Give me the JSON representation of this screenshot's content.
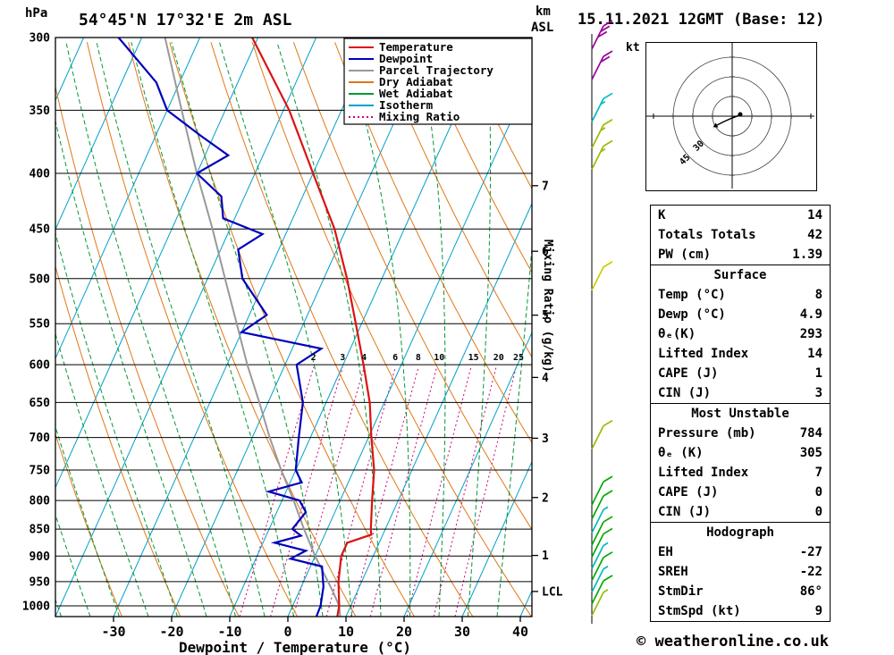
{
  "header": {
    "pressure_unit": "hPa",
    "title": "54°45'N 17°32'E 2m ASL",
    "km_label": "km",
    "asl_label": "ASL",
    "date_title": "15.11.2021 12GMT (Base: 12)"
  },
  "axes": {
    "xlabel": "Dewpoint / Temperature (°C)",
    "mixing_ratio_axis_label": "Mixing Ratio (g/kg)",
    "pressure_ticks": [
      300,
      350,
      400,
      450,
      500,
      550,
      600,
      650,
      700,
      750,
      800,
      850,
      900,
      950,
      1000
    ],
    "temp_ticks": [
      -30,
      -20,
      -10,
      0,
      10,
      20,
      30,
      40
    ],
    "lcl_label": "LCL"
  },
  "legend": [
    {
      "label": "Temperature",
      "color": "#dd1111",
      "dash": ""
    },
    {
      "label": "Dewpoint",
      "color": "#0000bb",
      "dash": ""
    },
    {
      "label": "Parcel Trajectory",
      "color": "#999999",
      "dash": ""
    },
    {
      "label": "Dry Adiabat",
      "color": "#e07818",
      "dash": ""
    },
    {
      "label": "Wet Adiabat",
      "color": "#009933",
      "dash": ""
    },
    {
      "label": "Isotherm",
      "color": "#00a0c8",
      "dash": ""
    },
    {
      "label": "Mixing Ratio",
      "color": "#cc0077",
      "dash": "2,3"
    }
  ],
  "hodograph": {
    "unit_label": "kt",
    "ring_labels": [
      "30",
      "45"
    ]
  },
  "table": {
    "sections": [
      {
        "header": "",
        "rows": [
          [
            "K",
            "14"
          ],
          [
            "Totals Totals",
            "42"
          ],
          [
            "PW (cm)",
            "1.39"
          ]
        ]
      },
      {
        "header": "Surface",
        "rows": [
          [
            "Temp (°C)",
            "8"
          ],
          [
            "Dewp (°C)",
            "4.9"
          ],
          [
            "θₑ(K)",
            "293"
          ],
          [
            "Lifted Index",
            "14"
          ],
          [
            "CAPE (J)",
            "1"
          ],
          [
            "CIN (J)",
            "3"
          ]
        ]
      },
      {
        "header": "Most Unstable",
        "rows": [
          [
            "Pressure (mb)",
            "784"
          ],
          [
            "θₑ (K)",
            "305"
          ],
          [
            "Lifted Index",
            "7"
          ],
          [
            "CAPE (J)",
            "0"
          ],
          [
            "CIN (J)",
            "0"
          ]
        ]
      },
      {
        "header": "Hodograph",
        "rows": [
          [
            "EH",
            "-27"
          ],
          [
            "SREH",
            "-22"
          ],
          [
            "StmDir",
            "86°"
          ],
          [
            "StmSpd (kt)",
            "9"
          ]
        ]
      }
    ]
  },
  "footer": {
    "copyright": "© weatheronline.co.uk"
  },
  "chart_data": {
    "type": "skewt-log-p",
    "title": "54°45'N 17°32'E 2m ASL",
    "pressure_range_hpa": [
      300,
      1023
    ],
    "isotherm_step_c": 10,
    "dry_adiabat_step_k": 10,
    "wet_adiabat_step_c": 5,
    "mixing_ratio_lines_gkg": [
      2,
      3,
      4,
      6,
      8,
      10,
      15,
      20,
      25
    ],
    "km_asl_ticks": [
      1,
      2,
      3,
      4,
      5,
      6,
      7
    ],
    "lcl_pressure_hpa": 970,
    "temperature_profile": [
      [
        1023,
        8.5
      ],
      [
        1000,
        8
      ],
      [
        950,
        6
      ],
      [
        900,
        4.5
      ],
      [
        875,
        4.5
      ],
      [
        860,
        8
      ],
      [
        850,
        7.5
      ],
      [
        800,
        5.5
      ],
      [
        750,
        3.5
      ],
      [
        700,
        0.5
      ],
      [
        650,
        -2.5
      ],
      [
        600,
        -6.5
      ],
      [
        550,
        -11
      ],
      [
        500,
        -16
      ],
      [
        450,
        -22
      ],
      [
        400,
        -30
      ],
      [
        350,
        -39
      ],
      [
        300,
        -51
      ]
    ],
    "dewpoint_profile": [
      [
        1023,
        4.9
      ],
      [
        1000,
        4.8
      ],
      [
        960,
        3.8
      ],
      [
        920,
        2
      ],
      [
        905,
        -4
      ],
      [
        890,
        -2
      ],
      [
        875,
        -8
      ],
      [
        862,
        -4
      ],
      [
        850,
        -6
      ],
      [
        820,
        -5
      ],
      [
        800,
        -7
      ],
      [
        785,
        -13
      ],
      [
        770,
        -8
      ],
      [
        750,
        -10
      ],
      [
        700,
        -12
      ],
      [
        650,
        -14
      ],
      [
        600,
        -18
      ],
      [
        580,
        -15
      ],
      [
        560,
        -30
      ],
      [
        540,
        -27
      ],
      [
        500,
        -34
      ],
      [
        470,
        -37
      ],
      [
        455,
        -34
      ],
      [
        440,
        -42
      ],
      [
        420,
        -44
      ],
      [
        400,
        -50
      ],
      [
        385,
        -46
      ],
      [
        370,
        -52
      ],
      [
        350,
        -60
      ],
      [
        330,
        -64
      ],
      [
        300,
        -74
      ]
    ],
    "parcel_profile": [
      [
        1023,
        9
      ],
      [
        1000,
        8
      ],
      [
        970,
        5.8
      ],
      [
        900,
        0
      ],
      [
        850,
        -4
      ],
      [
        800,
        -8
      ],
      [
        750,
        -12.5
      ],
      [
        700,
        -17
      ],
      [
        650,
        -21.5
      ],
      [
        600,
        -26.5
      ],
      [
        550,
        -31.5
      ],
      [
        500,
        -37
      ],
      [
        450,
        -43
      ],
      [
        400,
        -50
      ],
      [
        350,
        -57.5
      ],
      [
        300,
        -66
      ]
    ],
    "hodograph": {
      "rings_kt": [
        15,
        30,
        45
      ],
      "trace": [
        [
          104,
          81
        ],
        [
          96,
          84
        ],
        [
          87,
          88
        ],
        [
          79,
          92
        ]
      ],
      "storm_dot": [
        105,
        80
      ]
    },
    "wind_barbs": [
      {
        "p": 300,
        "kt": 30,
        "color": "#990099"
      },
      {
        "p": 320,
        "kt": 20,
        "color": "#990099"
      },
      {
        "p": 350,
        "kt": 15,
        "color": "#00bbbb"
      },
      {
        "p": 370,
        "kt": 15,
        "color": "#99bb00"
      },
      {
        "p": 387,
        "kt": 15,
        "color": "#99bb00"
      },
      {
        "p": 500,
        "kt": 10,
        "color": "#cccc00"
      },
      {
        "p": 700,
        "kt": 10,
        "color": "#99bb00"
      },
      {
        "p": 788,
        "kt": 10,
        "color": "#00aa00"
      },
      {
        "p": 812,
        "kt": 10,
        "color": "#00aa00"
      },
      {
        "p": 836,
        "kt": 5,
        "color": "#00bbbb"
      },
      {
        "p": 858,
        "kt": 10,
        "color": "#00aa00"
      },
      {
        "p": 880,
        "kt": 10,
        "color": "#00aa00"
      },
      {
        "p": 902,
        "kt": 5,
        "color": "#00bbbb"
      },
      {
        "p": 925,
        "kt": 10,
        "color": "#00aa00"
      },
      {
        "p": 948,
        "kt": 5,
        "color": "#00bbbb"
      },
      {
        "p": 972,
        "kt": 10,
        "color": "#00aa00"
      },
      {
        "p": 996,
        "kt": 5,
        "color": "#99bb00"
      }
    ]
  }
}
